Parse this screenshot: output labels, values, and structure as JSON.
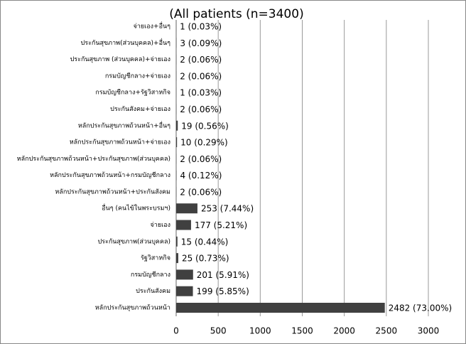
{
  "chart_data": {
    "type": "bar",
    "orientation": "horizontal",
    "title": "(All patients (n=3400)",
    "categories": [
      "จ่ายเอง+อื่นๆ",
      "ประกันสุขภาพ(ส่วนบุคคล)+อื่นๆ",
      "ประกันสุขภาพ (ส่วนบุคคล)+จ่ายเอง",
      "กรมบัญชีกลาง+จ่ายเอง",
      "กรมบัญชีกลาง+รัฐวิสาหกิจ",
      "ประกันสังคม+จ่ายเอง",
      "หลักประกันสุขภาพถ้วนหน้า+อื่นๆ",
      "หลักประกันสุขภาพถ้วนหน้า+จ่ายเอง",
      "หลักประกันสุขภาพถ้วนหน้า+ประกันสุขภาพ(ส่วนบุคคล)",
      "หลักประกันสุขภาพถ้วนหน้า+กรมบัญชีกลาง",
      "หลักประกันสุขภาพถ้วนหน้า+ประกันสังคม",
      "อื่นๆ (คนไข้ในพระบรมฯ)",
      "จ่ายเอง",
      "ประกันสุขภาพ(ส่วนบุคคล)",
      "รัฐวิสาหกิจ",
      "กรมบัญชีกลาง",
      "ประกันสังคม",
      "หลักประกันสุขภาพถ้วนหน้า"
    ],
    "values": [
      1,
      3,
      2,
      2,
      1,
      2,
      19,
      10,
      2,
      4,
      2,
      253,
      177,
      15,
      25,
      201,
      199,
      2482
    ],
    "value_labels": [
      "1 (0.03%)",
      "3 (0.09%)",
      "2 (0.06%)",
      "2 (0.06%)",
      "1 (0.03%)",
      "2 (0.06%)",
      "19 (0.56%)",
      "10 (0.29%)",
      "2 (0.06%)",
      "4 (0.12%)",
      "2 (0.06%)",
      "253 (7.44%)",
      "177 (5.21%)",
      "15 (0.44%)",
      "25 (0.73%)",
      "201 (5.91%)",
      "199 (5.85%)",
      "2482 (73.00%)"
    ],
    "color": "#404040",
    "xlim": [
      0,
      3000
    ],
    "xticks": [
      0,
      500,
      1000,
      1500,
      2000,
      2500,
      3000
    ],
    "grid": true
  }
}
